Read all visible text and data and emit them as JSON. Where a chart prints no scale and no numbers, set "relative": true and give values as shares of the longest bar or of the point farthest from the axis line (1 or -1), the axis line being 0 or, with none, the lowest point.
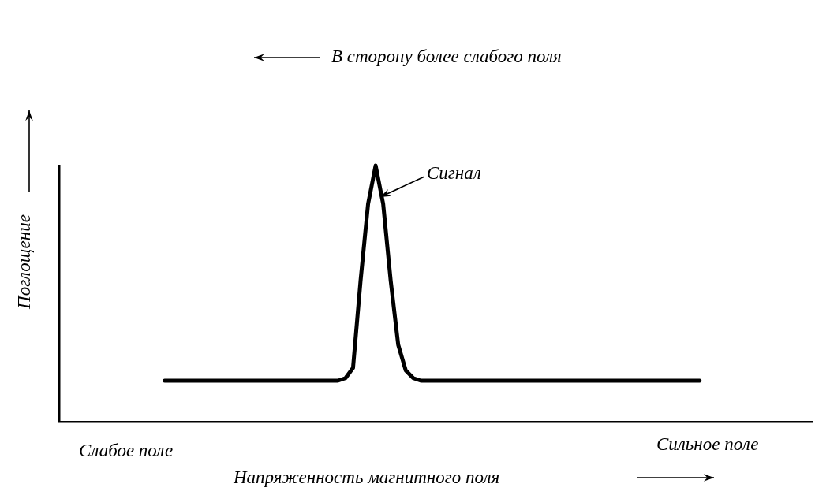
{
  "chart_data": {
    "type": "line",
    "relative": true,
    "color": "#000000",
    "marker": "none",
    "line_style": "solid",
    "grid": false,
    "legend": false,
    "tick_labels": false,
    "title": "В сторону более слабого поля",
    "xlabel": "Напряженность магнитного поля",
    "ylabel": "Поглощение",
    "annotations": [
      "Сигнал",
      "Слабое поле",
      "Сильное поле"
    ],
    "categories": [
      null,
      null,
      null,
      null,
      null,
      null,
      null,
      null,
      null,
      null,
      null,
      null,
      null,
      null,
      null,
      null,
      null,
      null,
      null,
      null,
      null,
      null,
      null,
      null,
      null,
      null,
      null,
      null,
      null,
      null,
      null,
      null,
      null,
      null,
      null,
      null,
      null,
      null,
      null,
      null,
      null,
      null,
      null,
      null,
      null,
      null,
      null,
      null,
      null,
      null,
      null,
      null,
      null,
      null,
      null,
      null,
      null,
      null,
      null,
      null,
      null,
      null,
      null,
      null,
      null,
      null,
      null,
      null,
      null,
      null,
      null,
      null,
      null,
      null,
      null,
      null,
      null,
      null,
      null,
      null,
      null,
      null,
      null,
      null,
      null,
      null,
      null,
      null,
      null,
      null,
      null,
      null,
      null,
      null,
      null,
      null,
      null,
      null,
      null,
      null,
      null
    ],
    "values": [
      null,
      null,
      null,
      null,
      null,
      null,
      null,
      null,
      null,
      null,
      null,
      null,
      null,
      null,
      0.16,
      0.16,
      0.16,
      0.16,
      0.16,
      0.16,
      0.16,
      0.16,
      0.16,
      0.16,
      0.16,
      0.16,
      0.16,
      0.16,
      0.16,
      0.16,
      0.16,
      0.16,
      0.16,
      0.16,
      0.16,
      0.16,
      0.16,
      0.16,
      0.17,
      0.21,
      0.55,
      0.85,
      1,
      0.85,
      0.55,
      0.3,
      0.2,
      0.17,
      0.16,
      0.16,
      0.16,
      0.16,
      0.16,
      0.16,
      0.16,
      0.16,
      0.16,
      0.16,
      0.16,
      0.16,
      0.16,
      0.16,
      0.16,
      0.16,
      0.16,
      0.16,
      0.16,
      0.16,
      0.16,
      0.16,
      0.16,
      0.16,
      0.16,
      0.16,
      0.16,
      0.16,
      0.16,
      0.16,
      0.16,
      0.16,
      0.16,
      0.16,
      0.16,
      0.16,
      0.16,
      0.16,
      null,
      null,
      null,
      null,
      null,
      null,
      null,
      null,
      null,
      null,
      null,
      null,
      null,
      null,
      null
    ]
  }
}
